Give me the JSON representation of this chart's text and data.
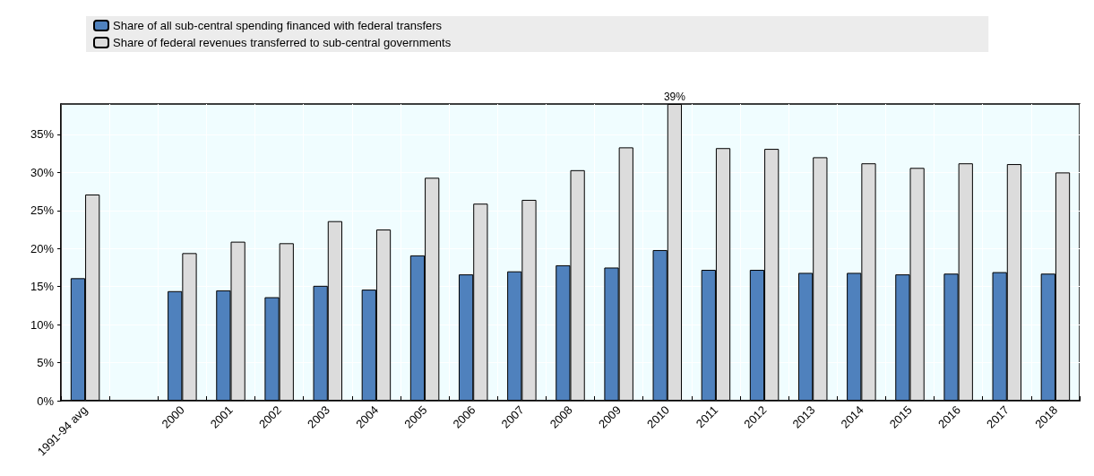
{
  "chart_data": {
    "type": "bar",
    "categories": [
      "1991-94 avg",
      null,
      "2000",
      "2001",
      "2002",
      "2003",
      "2004",
      "2005",
      "2006",
      "2007",
      "2008",
      "2009",
      "2010",
      "2011",
      "2012",
      "2013",
      "2014",
      "2015",
      "2016",
      "2017",
      "2018"
    ],
    "series": [
      {
        "name": "Share of all sub-central spending financed with federal transfers",
        "color": "#4f81bd",
        "values": [
          16.1,
          null,
          14.4,
          14.5,
          13.6,
          15.1,
          14.6,
          19.1,
          16.6,
          17.0,
          17.8,
          17.5,
          19.8,
          17.2,
          17.2,
          16.8,
          16.8,
          16.6,
          16.7,
          16.9,
          16.7
        ]
      },
      {
        "name": "Share of federal revenues transferred to sub-central governments",
        "color": "#dcdcdc",
        "values": [
          27.1,
          null,
          19.4,
          20.9,
          20.7,
          23.6,
          22.5,
          29.3,
          25.9,
          26.4,
          30.3,
          33.3,
          39,
          33.2,
          33.1,
          32.0,
          31.2,
          30.6,
          31.2,
          31.1,
          30.0
        ],
        "value_labels": [
          null,
          null,
          null,
          null,
          null,
          null,
          null,
          null,
          null,
          null,
          null,
          null,
          "39%",
          null,
          null,
          null,
          null,
          null,
          null,
          null,
          null
        ]
      }
    ],
    "ylim": [
      0,
      39
    ],
    "yticks": [
      {
        "value": 0,
        "label": "0%"
      },
      {
        "value": 5,
        "label": "5%"
      },
      {
        "value": 10,
        "label": "10%"
      },
      {
        "value": 15,
        "label": "15%"
      },
      {
        "value": 20,
        "label": "20%"
      },
      {
        "value": 25,
        "label": "25%"
      },
      {
        "value": 30,
        "label": "30%"
      },
      {
        "value": 35,
        "label": "35%"
      }
    ],
    "grid": true,
    "legend": "top left"
  }
}
